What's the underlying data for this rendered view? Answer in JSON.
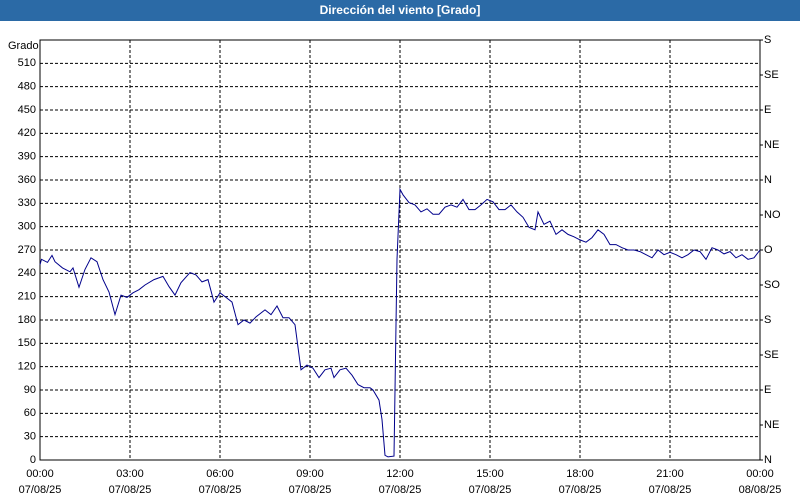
{
  "chart_data": {
    "type": "line",
    "title": "Dirección del viento [Grado]",
    "y_label": "Grado",
    "xlim": [
      0,
      24
    ],
    "xticks": [
      {
        "value": 0,
        "time": "00:00",
        "date": "07/08/25"
      },
      {
        "value": 3,
        "time": "03:00",
        "date": "07/08/25"
      },
      {
        "value": 6,
        "time": "06:00",
        "date": "07/08/25"
      },
      {
        "value": 9,
        "time": "09:00",
        "date": "07/08/25"
      },
      {
        "value": 12,
        "time": "12:00",
        "date": "07/08/25"
      },
      {
        "value": 15,
        "time": "15:00",
        "date": "07/08/25"
      },
      {
        "value": 18,
        "time": "18:00",
        "date": "07/08/25"
      },
      {
        "value": 21,
        "time": "21:00",
        "date": "07/08/25"
      },
      {
        "value": 24,
        "time": "00:00",
        "date": "08/08/25"
      }
    ],
    "ylim": [
      0,
      540
    ],
    "yticks": [
      0,
      30,
      60,
      90,
      120,
      150,
      180,
      210,
      240,
      270,
      300,
      330,
      360,
      390,
      420,
      450,
      480,
      510
    ],
    "y2lim": [
      0,
      540
    ],
    "y2ticks": [
      {
        "value": 0,
        "label": "N"
      },
      {
        "value": 45,
        "label": "NE"
      },
      {
        "value": 90,
        "label": "E"
      },
      {
        "value": 135,
        "label": "SE"
      },
      {
        "value": 180,
        "label": "S"
      },
      {
        "value": 225,
        "label": "SO"
      },
      {
        "value": 270,
        "label": "O"
      },
      {
        "value": 315,
        "label": "NO"
      },
      {
        "value": 360,
        "label": "N"
      },
      {
        "value": 405,
        "label": "NE"
      },
      {
        "value": 450,
        "label": "E"
      },
      {
        "value": 495,
        "label": "SE"
      },
      {
        "value": 540,
        "label": "S"
      }
    ],
    "grid": true,
    "series": [
      {
        "name": "Dirección del viento",
        "color": "#00008b",
        "x": [
          0,
          0.05,
          0.25,
          0.4,
          0.5,
          0.75,
          1.0,
          1.1,
          1.3,
          1.5,
          1.7,
          1.9,
          2.1,
          2.3,
          2.5,
          2.7,
          2.9,
          3.1,
          3.3,
          3.5,
          3.8,
          4.1,
          4.3,
          4.5,
          4.7,
          5.0,
          5.2,
          5.4,
          5.6,
          5.8,
          6.0,
          6.2,
          6.4,
          6.6,
          6.8,
          7.0,
          7.2,
          7.5,
          7.7,
          7.9,
          8.1,
          8.3,
          8.5,
          8.7,
          8.9,
          9.1,
          9.3,
          9.5,
          9.7,
          9.8,
          10.0,
          10.2,
          10.4,
          10.6,
          10.8,
          11.0,
          11.1,
          11.3,
          11.4,
          11.5,
          11.6,
          11.8,
          11.9,
          12.0,
          12.1,
          12.3,
          12.5,
          12.7,
          12.9,
          13.1,
          13.3,
          13.5,
          13.7,
          13.9,
          14.1,
          14.3,
          14.5,
          14.7,
          14.9,
          15.1,
          15.3,
          15.5,
          15.7,
          15.9,
          16.1,
          16.3,
          16.5,
          16.6,
          16.8,
          17.0,
          17.2,
          17.4,
          17.6,
          17.8,
          18.0,
          18.2,
          18.4,
          18.6,
          18.8,
          19.0,
          19.2,
          19.4,
          19.6,
          19.8,
          20.0,
          20.2,
          20.4,
          20.6,
          20.8,
          21.0,
          21.2,
          21.4,
          21.6,
          21.8,
          22.0,
          22.2,
          22.4,
          22.6,
          22.8,
          23.0,
          23.2,
          23.4,
          23.6,
          23.8,
          24.0
        ],
        "values": [
          251,
          258,
          254,
          263,
          255,
          247,
          242,
          247,
          222,
          245,
          260,
          255,
          232,
          216,
          187,
          212,
          209,
          215,
          219,
          225,
          232,
          236,
          223,
          212,
          228,
          241,
          238,
          229,
          232,
          203,
          215,
          209,
          203,
          174,
          180,
          176,
          184,
          193,
          187,
          198,
          183,
          183,
          174,
          116,
          122,
          118,
          106,
          116,
          118,
          106,
          116,
          118,
          109,
          97,
          93,
          93,
          90,
          77,
          52,
          6,
          4,
          5,
          258,
          348,
          341,
          331,
          328,
          319,
          323,
          316,
          316,
          325,
          328,
          325,
          335,
          322,
          322,
          328,
          335,
          332,
          322,
          322,
          328,
          319,
          312,
          299,
          296,
          319,
          303,
          307,
          290,
          296,
          290,
          287,
          283,
          280,
          286,
          296,
          290,
          277,
          277,
          273,
          270,
          270,
          268,
          264,
          260,
          270,
          264,
          267,
          264,
          260,
          264,
          270,
          268,
          258,
          273,
          270,
          265,
          268,
          260,
          264,
          258,
          260,
          270
        ]
      }
    ]
  }
}
